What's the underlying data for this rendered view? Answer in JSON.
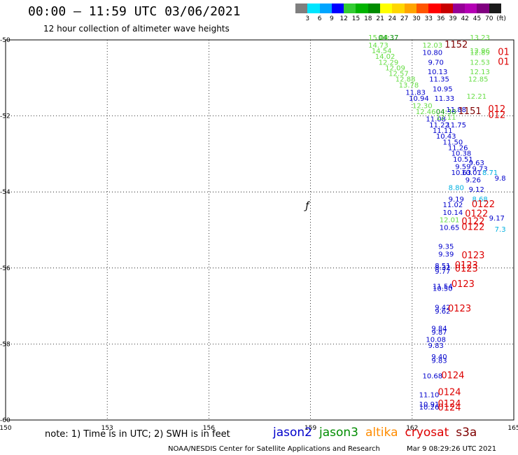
{
  "header": {
    "title": "00:00 – 11:59 UTC 03/06/2021",
    "subtitle": "12 hour collection of altimeter wave heights"
  },
  "colorbar": {
    "colors": [
      "#7f7f7f",
      "#00e5ff",
      "#00a5ff",
      "#0000ff",
      "#33cc33",
      "#00b400",
      "#008c00",
      "#ffff00",
      "#ffd700",
      "#ffa500",
      "#ff5500",
      "#ff0000",
      "#c80000",
      "#960096",
      "#b400b4",
      "#7f007f",
      "#1a1a1a"
    ],
    "labels": [
      "3",
      "6",
      "9",
      "12",
      "15",
      "18",
      "21",
      "24",
      "27",
      "30",
      "33",
      "36",
      "39",
      "42",
      "45",
      "70",
      "(ft)"
    ]
  },
  "map": {
    "lon_labels": [
      "150",
      "153",
      "156",
      "159",
      "162",
      "165"
    ],
    "lat_labels": [
      "-50",
      "-52",
      "-54",
      "-56",
      "-58",
      "-60"
    ],
    "island_label": "ƒ",
    "satellite_colors": {
      "jason2": "#0000cc",
      "jason3": "#008c00",
      "jason3_light": "#66dd44",
      "altika": "#ff8c00",
      "cryosat": "#dd0000",
      "s3a": "#7f0000",
      "cyan": "#00b0e0"
    },
    "observations": [
      {
        "text": "15.04",
        "sat": "jason3_light",
        "lon": 161.0,
        "lat": -50.0
      },
      {
        "text": "04:37",
        "sat": "jason3",
        "lon": 161.3,
        "lat": -50.0
      },
      {
        "text": "14.73",
        "sat": "jason3_light",
        "lon": 161.0,
        "lat": -50.2
      },
      {
        "text": "14.54",
        "sat": "jason3_light",
        "lon": 161.1,
        "lat": -50.35
      },
      {
        "text": "14.02",
        "sat": "jason3_light",
        "lon": 161.2,
        "lat": -50.5
      },
      {
        "text": "12.29",
        "sat": "jason3_light",
        "lon": 161.3,
        "lat": -50.65
      },
      {
        "text": "12.09",
        "sat": "jason3_light",
        "lon": 161.5,
        "lat": -50.8
      },
      {
        "text": "12.57",
        "sat": "jason3_light",
        "lon": 161.6,
        "lat": -50.95
      },
      {
        "text": "12.88",
        "sat": "jason3_light",
        "lon": 161.8,
        "lat": -51.1
      },
      {
        "text": "13.78",
        "sat": "jason3_light",
        "lon": 161.9,
        "lat": -51.25
      },
      {
        "text": "11.83",
        "sat": "jason2",
        "lon": 162.1,
        "lat": -51.45
      },
      {
        "text": "10.94",
        "sat": "jason2",
        "lon": 162.2,
        "lat": -51.6
      },
      {
        "text": "12.30",
        "sat": "jason3_light",
        "lon": 162.3,
        "lat": -51.8
      },
      {
        "text": "12.46",
        "sat": "jason3_light",
        "lon": 162.4,
        "lat": -51.95
      },
      {
        "text": "04:38",
        "sat": "jason3",
        "lon": 163.0,
        "lat": -51.95
      },
      {
        "text": "11.08",
        "sat": "jason2",
        "lon": 162.7,
        "lat": -52.15
      },
      {
        "text": "11.22",
        "sat": "jason2",
        "lon": 162.8,
        "lat": -52.3
      },
      {
        "text": "11.11",
        "sat": "jason2",
        "lon": 162.9,
        "lat": -52.45
      },
      {
        "text": "10.43",
        "sat": "jason2",
        "lon": 163.0,
        "lat": -52.6
      },
      {
        "text": "11.50",
        "sat": "jason2",
        "lon": 163.2,
        "lat": -52.75
      },
      {
        "text": "11.26",
        "sat": "jason2",
        "lon": 163.35,
        "lat": -52.9
      },
      {
        "text": "10.38",
        "sat": "jason2",
        "lon": 163.45,
        "lat": -53.05
      },
      {
        "text": "10.51",
        "sat": "jason2",
        "lon": 163.5,
        "lat": -53.2
      },
      {
        "text": "9.63",
        "sat": "jason2",
        "lon": 163.9,
        "lat": -53.3
      },
      {
        "text": "9.59",
        "sat": "jason2",
        "lon": 163.5,
        "lat": -53.4
      },
      {
        "text": "10.01",
        "sat": "jason2",
        "lon": 163.75,
        "lat": -53.55
      },
      {
        "text": "10.63",
        "sat": "jason2",
        "lon": 163.45,
        "lat": -53.55
      },
      {
        "text": "9.73",
        "sat": "jason2",
        "lon": 164.0,
        "lat": -53.45
      },
      {
        "text": "8.71",
        "sat": "cyan",
        "lon": 164.3,
        "lat": -53.55
      },
      {
        "text": "9.26",
        "sat": "jason2",
        "lon": 163.8,
        "lat": -53.75
      },
      {
        "text": "9.8",
        "sat": "jason2",
        "lon": 164.6,
        "lat": -53.7
      },
      {
        "text": "8.80",
        "sat": "cyan",
        "lon": 163.3,
        "lat": -53.95
      },
      {
        "text": "9.12",
        "sat": "jason2",
        "lon": 163.9,
        "lat": -54.0
      },
      {
        "text": "8.68",
        "sat": "cyan",
        "lon": 164.0,
        "lat": -54.25
      },
      {
        "text": "9.19",
        "sat": "jason2",
        "lon": 163.3,
        "lat": -54.25
      },
      {
        "text": "11.02",
        "sat": "jason2",
        "lon": 163.2,
        "lat": -54.4
      },
      {
        "text": "10.14",
        "sat": "jason2",
        "lon": 163.2,
        "lat": -54.6
      },
      {
        "text": "12.01",
        "sat": "jason3_light",
        "lon": 163.1,
        "lat": -54.8
      },
      {
        "text": "10.65",
        "sat": "jason2",
        "lon": 163.1,
        "lat": -55.0
      },
      {
        "text": "9.17",
        "sat": "jason2",
        "lon": 164.5,
        "lat": -54.75
      },
      {
        "text": "7.3",
        "sat": "cyan",
        "lon": 164.6,
        "lat": -55.05
      },
      {
        "text": "9.35",
        "sat": "jason2",
        "lon": 163.0,
        "lat": -55.5
      },
      {
        "text": "9.39",
        "sat": "jason2",
        "lon": 163.0,
        "lat": -55.7
      },
      {
        "text": "8.51",
        "sat": "jason2",
        "lon": 162.9,
        "lat": -56.0
      },
      {
        "text": "8.32",
        "sat": "jason2",
        "lon": 162.9,
        "lat": -56.05
      },
      {
        "text": "9.77",
        "sat": "jason2",
        "lon": 162.9,
        "lat": -56.15
      },
      {
        "text": "11.54",
        "sat": "jason2",
        "lon": 162.9,
        "lat": -56.55
      },
      {
        "text": "10.50",
        "sat": "jason2",
        "lon": 162.9,
        "lat": -56.6
      },
      {
        "text": "9.42",
        "sat": "jason2",
        "lon": 162.9,
        "lat": -57.1
      },
      {
        "text": "9.62",
        "sat": "jason2",
        "lon": 162.9,
        "lat": -57.2
      },
      {
        "text": "9.84",
        "sat": "jason2",
        "lon": 162.8,
        "lat": -57.65
      },
      {
        "text": "9.87",
        "sat": "jason2",
        "lon": 162.8,
        "lat": -57.75
      },
      {
        "text": "10.08",
        "sat": "jason2",
        "lon": 162.7,
        "lat": -57.95
      },
      {
        "text": "9.83",
        "sat": "jason2",
        "lon": 162.7,
        "lat": -58.1
      },
      {
        "text": "9.40",
        "sat": "jason2",
        "lon": 162.8,
        "lat": -58.4
      },
      {
        "text": "9.83",
        "sat": "jason2",
        "lon": 162.8,
        "lat": -58.5
      },
      {
        "text": "10.68",
        "sat": "jason2",
        "lon": 162.6,
        "lat": -58.9
      },
      {
        "text": "11.10",
        "sat": "jason2",
        "lon": 162.5,
        "lat": -59.4
      },
      {
        "text": "10.91",
        "sat": "jason2",
        "lon": 162.5,
        "lat": -59.65
      },
      {
        "text": "10.26",
        "sat": "jason2",
        "lon": 162.5,
        "lat": -59.72
      },
      {
        "text": "12.03",
        "sat": "jason3_light",
        "lon": 162.6,
        "lat": -50.2
      },
      {
        "text": "10.80",
        "sat": "jason2",
        "lon": 162.6,
        "lat": -50.4
      },
      {
        "text": "9.70",
        "sat": "jason2",
        "lon": 162.7,
        "lat": -50.65
      },
      {
        "text": "10.13",
        "sat": "jason2",
        "lon": 162.75,
        "lat": -50.9
      },
      {
        "text": "11.35",
        "sat": "jason2",
        "lon": 162.8,
        "lat": -51.1
      },
      {
        "text": "10.95",
        "sat": "jason2",
        "lon": 162.9,
        "lat": -51.35
      },
      {
        "text": "11.33",
        "sat": "jason2",
        "lon": 162.95,
        "lat": -51.6
      },
      {
        "text": "11.88",
        "sat": "jason2",
        "lon": 163.3,
        "lat": -51.9
      },
      {
        "text": "12.11",
        "sat": "jason3_light",
        "lon": 163.0,
        "lat": -52.1
      },
      {
        "text": "11.75",
        "sat": "jason2",
        "lon": 163.3,
        "lat": -52.3
      },
      {
        "text": "1152",
        "sat": "s3a",
        "lon": 163.3,
        "lat": -50.2
      },
      {
        "text": "1151",
        "sat": "s3a",
        "lon": 163.7,
        "lat": -51.95
      },
      {
        "text": "13.23",
        "sat": "jason3_light",
        "lon": 164.0,
        "lat": -50.0
      },
      {
        "text": "12.96",
        "sat": "jason3_light",
        "lon": 164.0,
        "lat": -50.35
      },
      {
        "text": "12.89",
        "sat": "jason3_light",
        "lon": 164.0,
        "lat": -50.4
      },
      {
        "text": "12.53",
        "sat": "jason3_light",
        "lon": 164.0,
        "lat": -50.65
      },
      {
        "text": "12.13",
        "sat": "jason3_light",
        "lon": 164.0,
        "lat": -50.9
      },
      {
        "text": "12.85",
        "sat": "jason3_light",
        "lon": 163.95,
        "lat": -51.1
      },
      {
        "text": "12.21",
        "sat": "jason3_light",
        "lon": 163.9,
        "lat": -51.55
      },
      {
        "text": "01",
        "sat": "cryosat",
        "lon": 164.7,
        "lat": -50.4
      },
      {
        "text": "01",
        "sat": "cryosat",
        "lon": 164.7,
        "lat": -50.65
      },
      {
        "text": "012",
        "sat": "cryosat",
        "lon": 164.5,
        "lat": -51.9
      },
      {
        "text": "012",
        "sat": "cryosat",
        "lon": 164.5,
        "lat": -52.05
      },
      {
        "text": "0122",
        "sat": "cryosat",
        "lon": 164.1,
        "lat": -54.4
      },
      {
        "text": "0122",
        "sat": "cryosat",
        "lon": 163.9,
        "lat": -54.65
      },
      {
        "text": "0122",
        "sat": "cryosat",
        "lon": 163.8,
        "lat": -54.85
      },
      {
        "text": "0122",
        "sat": "cryosat",
        "lon": 163.8,
        "lat": -55.0
      },
      {
        "text": "0123",
        "sat": "cryosat",
        "lon": 163.8,
        "lat": -55.75
      },
      {
        "text": "0123",
        "sat": "cryosat",
        "lon": 163.6,
        "lat": -56.0
      },
      {
        "text": "0123",
        "sat": "cryosat",
        "lon": 163.6,
        "lat": -56.1
      },
      {
        "text": "0123",
        "sat": "cryosat",
        "lon": 163.5,
        "lat": -56.5
      },
      {
        "text": "0123",
        "sat": "cryosat",
        "lon": 163.4,
        "lat": -57.15
      },
      {
        "text": "0124",
        "sat": "cryosat",
        "lon": 163.2,
        "lat": -58.9
      },
      {
        "text": "0124",
        "sat": "cryosat",
        "lon": 163.1,
        "lat": -59.35
      },
      {
        "text": "0124",
        "sat": "cryosat",
        "lon": 163.1,
        "lat": -59.65
      },
      {
        "text": "0124",
        "sat": "cryosat",
        "lon": 163.1,
        "lat": -59.75
      }
    ]
  },
  "footer": {
    "note": "note: 1) Time is in UTC; 2) SWH is in feet",
    "legend": [
      {
        "label": "jason2",
        "color": "#0000cc"
      },
      {
        "label": "jason3",
        "color": "#008c00"
      },
      {
        "label": "altika",
        "color": "#ff8c00"
      },
      {
        "label": "cryosat",
        "color": "#dd0000"
      },
      {
        "label": "s3a",
        "color": "#7f0000"
      }
    ],
    "credit": "NOAA/NESDIS Center for Satellite Applications and Research",
    "timestamp": "Mar  9 08:29:26 UTC 2021"
  }
}
